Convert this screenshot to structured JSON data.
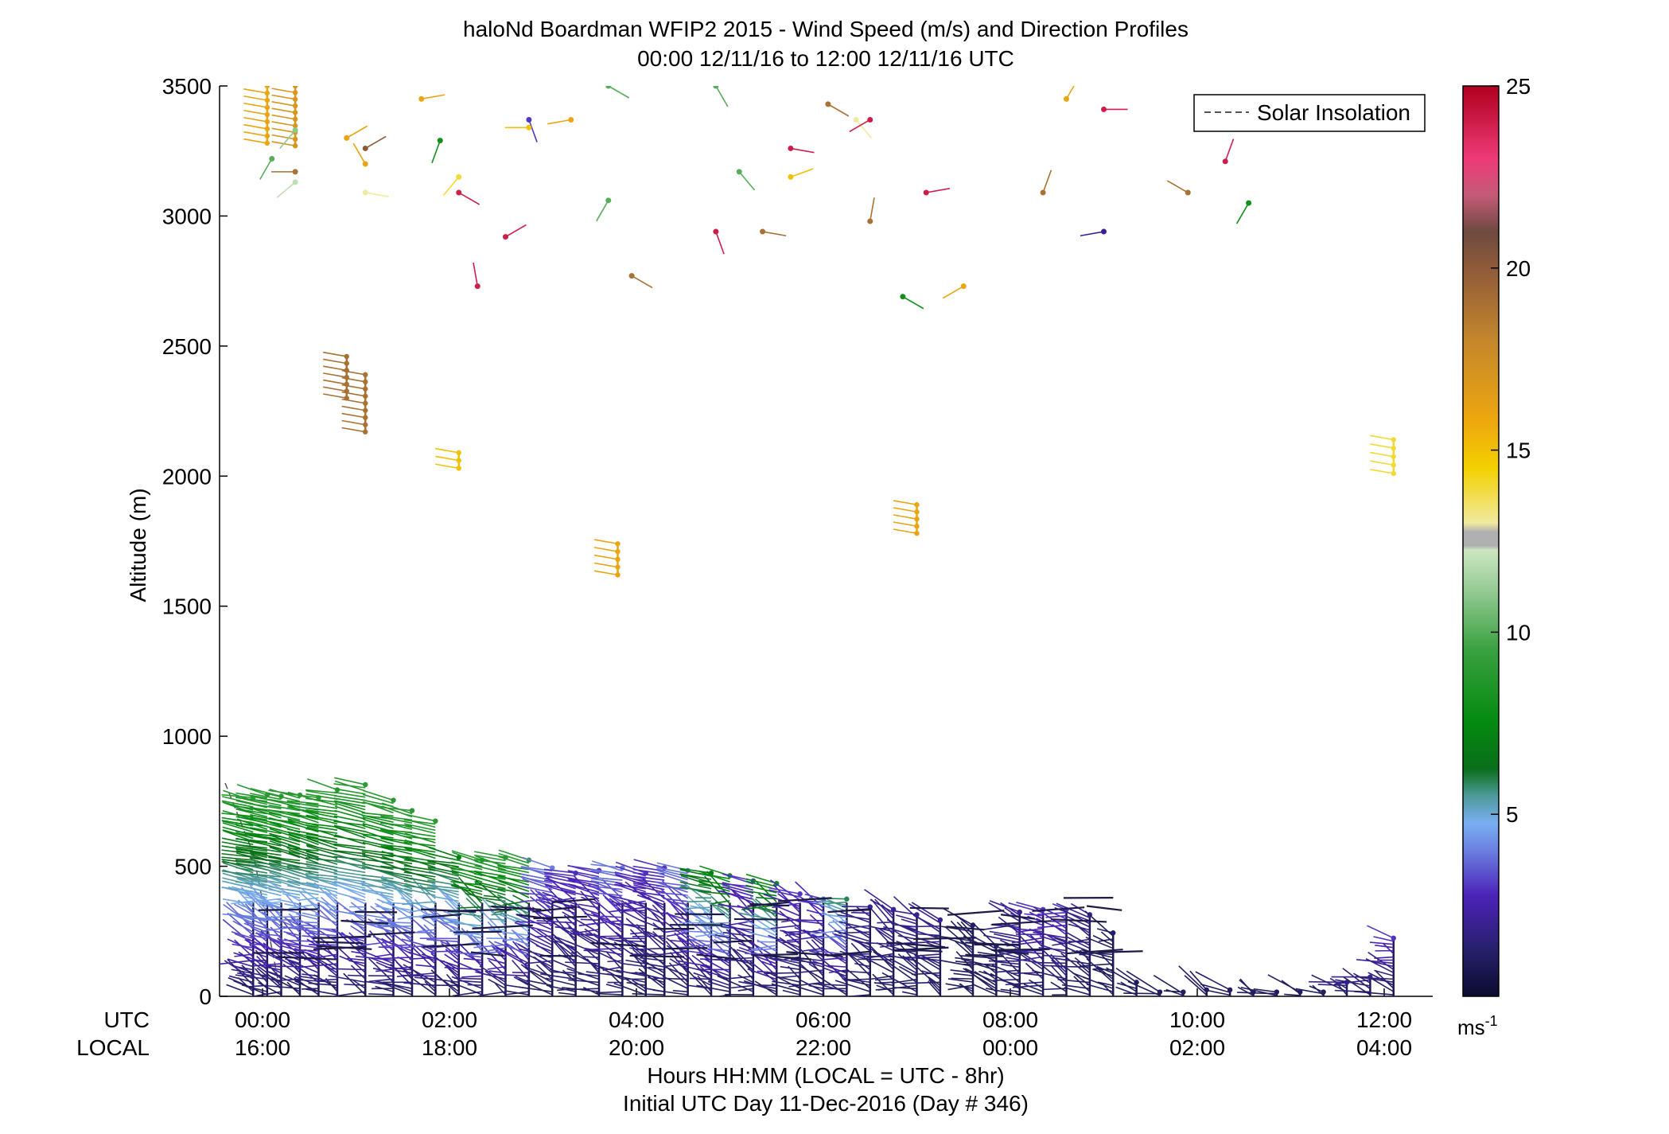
{
  "chart_data": {
    "type": "scatter",
    "title": "haloNd Boardman WFIP2 2015 - Wind Speed (m/s) and Direction Profiles",
    "subtitle": "00:00 12/11/16 to 12:00 12/11/16  UTC",
    "ylabel": "Altitude (m)",
    "xlabel": "Hours HH:MM  (LOCAL = UTC - 8hr)",
    "xlabel2": "Initial UTC Day 11-Dec-2016 (Day # 346)",
    "ylim": [
      0,
      3500
    ],
    "xlim_hours": [
      -0.4,
      12.5
    ],
    "yticks": [
      0,
      500,
      1000,
      1500,
      2000,
      2500,
      3000,
      3500
    ],
    "ytick_labels": [
      "0",
      "500",
      "1000",
      "1500",
      "2000",
      "2500",
      "3000",
      "3500"
    ],
    "xticks_hours": [
      0,
      2,
      4,
      6,
      8,
      10,
      12
    ],
    "xtick_labels_utc": [
      "00:00",
      "02:00",
      "04:00",
      "06:00",
      "08:00",
      "10:00",
      "12:00"
    ],
    "xtick_labels_local": [
      "16:00",
      "18:00",
      "20:00",
      "22:00",
      "00:00",
      "02:00",
      "04:00"
    ],
    "row_label_utc": "UTC",
    "row_label_local": "LOCAL",
    "legend": {
      "entries": [
        "Solar Insolation"
      ],
      "position": "top-right"
    },
    "colorbar": {
      "min": 0,
      "max": 25,
      "ticks": [
        5,
        10,
        15,
        20,
        25
      ],
      "tick_labels": [
        "5",
        "10",
        "15",
        "20",
        "25"
      ],
      "unit": "ms-1"
    },
    "solar_insolation": {
      "x": [
        -0.4,
        -0.1,
        0.2
      ],
      "y": [
        820,
        550,
        0
      ]
    },
    "low_level_profiles": {
      "description": "dense wind barbs per profile time",
      "profiles": [
        {
          "t": -0.1,
          "top": 770,
          "speed_top": 9
        },
        {
          "t": 0.05,
          "top": 780,
          "speed_top": 9
        },
        {
          "t": 0.2,
          "top": 775,
          "speed_top": 9
        },
        {
          "t": 0.4,
          "top": 780,
          "speed_top": 9
        },
        {
          "t": 0.6,
          "top": 770,
          "speed_top": 9
        },
        {
          "t": 0.8,
          "top": 800,
          "speed_top": 9
        },
        {
          "t": 1.1,
          "top": 820,
          "speed_top": 9
        },
        {
          "t": 1.4,
          "top": 760,
          "speed_top": 9
        },
        {
          "t": 1.6,
          "top": 720,
          "speed_top": 9
        },
        {
          "t": 1.85,
          "top": 680,
          "speed_top": 9
        },
        {
          "t": 2.1,
          "top": 540,
          "speed_top": 7
        },
        {
          "t": 2.35,
          "top": 530,
          "speed_top": 9
        },
        {
          "t": 2.6,
          "top": 540,
          "speed_top": 9
        },
        {
          "t": 2.85,
          "top": 530,
          "speed_top": 9
        },
        {
          "t": 3.1,
          "top": 500,
          "speed_top": 4
        },
        {
          "t": 3.35,
          "top": 480,
          "speed_top": 3
        },
        {
          "t": 3.6,
          "top": 490,
          "speed_top": 3
        },
        {
          "t": 3.85,
          "top": 500,
          "speed_top": 4
        },
        {
          "t": 4.1,
          "top": 480,
          "speed_top": 3
        },
        {
          "t": 4.3,
          "top": 500,
          "speed_top": 3
        },
        {
          "t": 4.55,
          "top": 490,
          "speed_top": 4
        },
        {
          "t": 4.8,
          "top": 480,
          "speed_top": 7
        },
        {
          "t": 5.0,
          "top": 470,
          "speed_top": 8
        },
        {
          "t": 5.25,
          "top": 450,
          "speed_top": 3
        },
        {
          "t": 5.5,
          "top": 440,
          "speed_top": 8
        },
        {
          "t": 5.75,
          "top": 400,
          "speed_top": 3
        },
        {
          "t": 6.0,
          "top": 380,
          "speed_top": 3
        },
        {
          "t": 6.25,
          "top": 380,
          "speed_top": 6
        },
        {
          "t": 6.5,
          "top": 350,
          "speed_top": 2
        },
        {
          "t": 6.75,
          "top": 340,
          "speed_top": 2
        },
        {
          "t": 7.0,
          "top": 320,
          "speed_top": 2
        },
        {
          "t": 7.25,
          "top": 300,
          "speed_top": 2
        },
        {
          "t": 7.6,
          "top": 280,
          "speed_top": 1
        },
        {
          "t": 7.85,
          "top": 200,
          "speed_top": 1
        },
        {
          "t": 8.1,
          "top": 330,
          "speed_top": 2
        },
        {
          "t": 8.35,
          "top": 340,
          "speed_top": 3
        },
        {
          "t": 8.6,
          "top": 340,
          "speed_top": 3
        },
        {
          "t": 8.85,
          "top": 320,
          "speed_top": 2
        },
        {
          "t": 9.1,
          "top": 250,
          "speed_top": 1
        },
        {
          "t": 9.35,
          "top": 60,
          "speed_top": 1
        },
        {
          "t": 9.6,
          "top": 20,
          "speed_top": 1
        },
        {
          "t": 9.85,
          "top": 20,
          "speed_top": 1
        },
        {
          "t": 10.1,
          "top": 30,
          "speed_top": 1
        },
        {
          "t": 10.35,
          "top": 30,
          "speed_top": 1
        },
        {
          "t": 10.6,
          "top": 20,
          "speed_top": 1
        },
        {
          "t": 10.85,
          "top": 20,
          "speed_top": 1
        },
        {
          "t": 11.1,
          "top": 20,
          "speed_top": 1
        },
        {
          "t": 11.35,
          "top": 20,
          "speed_top": 1
        },
        {
          "t": 11.6,
          "top": 60,
          "speed_top": 2
        },
        {
          "t": 11.85,
          "top": 80,
          "speed_top": 2
        },
        {
          "t": 12.1,
          "top": 230,
          "speed_top": 3
        }
      ]
    },
    "upper_clusters": [
      {
        "t": 0.05,
        "y_from": 3280,
        "y_to": 3500,
        "speed": 16,
        "dir": -80
      },
      {
        "t": 0.35,
        "y_from": 3270,
        "y_to": 3500,
        "speed": 17,
        "dir": -80
      },
      {
        "t": 0.9,
        "y_from": 2300,
        "y_to": 2460,
        "speed": 19,
        "dir": -80
      },
      {
        "t": 1.1,
        "y_from": 2170,
        "y_to": 2390,
        "speed": 19,
        "dir": -80
      },
      {
        "t": 2.1,
        "y_from": 2030,
        "y_to": 2090,
        "speed": 15,
        "dir": -80
      },
      {
        "t": 3.8,
        "y_from": 1620,
        "y_to": 1740,
        "speed": 16,
        "dir": -80
      },
      {
        "t": 7.0,
        "y_from": 1780,
        "y_to": 1890,
        "speed": 16,
        "dir": -80
      },
      {
        "t": 12.1,
        "y_from": 2010,
        "y_to": 2140,
        "speed": 14,
        "dir": -80
      }
    ],
    "upper_barbs": [
      {
        "t": 0.1,
        "y": 3220,
        "speed": 10,
        "dir": 210
      },
      {
        "t": 0.35,
        "y": 3170,
        "speed": 19,
        "dir": 270
      },
      {
        "t": 0.35,
        "y": 3130,
        "speed": 12,
        "dir": 230
      },
      {
        "t": 0.35,
        "y": 3330,
        "speed": 11,
        "dir": 220
      },
      {
        "t": 0.9,
        "y": 3300,
        "speed": 16,
        "dir": 60
      },
      {
        "t": 1.1,
        "y": 3260,
        "speed": 20,
        "dir": 60
      },
      {
        "t": 1.1,
        "y": 3200,
        "speed": 16,
        "dir": 330
      },
      {
        "t": 1.1,
        "y": 3090,
        "speed": 13,
        "dir": 100
      },
      {
        "t": 1.7,
        "y": 3450,
        "speed": 16,
        "dir": 80
      },
      {
        "t": 1.9,
        "y": 3290,
        "speed": 8,
        "dir": 200
      },
      {
        "t": 2.1,
        "y": 3150,
        "speed": 14,
        "dir": 220
      },
      {
        "t": 2.1,
        "y": 3090,
        "speed": 24,
        "dir": 120
      },
      {
        "t": 2.3,
        "y": 2730,
        "speed": 24,
        "dir": 350
      },
      {
        "t": 2.6,
        "y": 2920,
        "speed": 24,
        "dir": 60
      },
      {
        "t": 2.85,
        "y": 3370,
        "speed": 3,
        "dir": 160
      },
      {
        "t": 2.85,
        "y": 3340,
        "speed": 15,
        "dir": 270
      },
      {
        "t": 3.3,
        "y": 3370,
        "speed": 16,
        "dir": 260
      },
      {
        "t": 3.7,
        "y": 3060,
        "speed": 10,
        "dir": 210
      },
      {
        "t": 3.7,
        "y": 3500,
        "speed": 10,
        "dir": 120
      },
      {
        "t": 3.95,
        "y": 2770,
        "speed": 19,
        "dir": 120
      },
      {
        "t": 4.85,
        "y": 3500,
        "speed": 10,
        "dir": 150
      },
      {
        "t": 4.85,
        "y": 2940,
        "speed": 24,
        "dir": 160
      },
      {
        "t": 5.1,
        "y": 3170,
        "speed": 10,
        "dir": 140
      },
      {
        "t": 5.35,
        "y": 2940,
        "speed": 19,
        "dir": 100
      },
      {
        "t": 5.65,
        "y": 3150,
        "speed": 15,
        "dir": 70
      },
      {
        "t": 5.65,
        "y": 3260,
        "speed": 24,
        "dir": 100
      },
      {
        "t": 6.05,
        "y": 3430,
        "speed": 19,
        "dir": 120
      },
      {
        "t": 6.35,
        "y": 3370,
        "speed": 13,
        "dir": 140
      },
      {
        "t": 6.5,
        "y": 3370,
        "speed": 24,
        "dir": 240
      },
      {
        "t": 6.5,
        "y": 2980,
        "speed": 19,
        "dir": 10
      },
      {
        "t": 6.85,
        "y": 2690,
        "speed": 8,
        "dir": 120
      },
      {
        "t": 7.1,
        "y": 3090,
        "speed": 24,
        "dir": 80
      },
      {
        "t": 7.5,
        "y": 2730,
        "speed": 16,
        "dir": 240
      },
      {
        "t": 8.35,
        "y": 3090,
        "speed": 19,
        "dir": 20
      },
      {
        "t": 8.6,
        "y": 3450,
        "speed": 16,
        "dir": 30
      },
      {
        "t": 9.0,
        "y": 3410,
        "speed": 24,
        "dir": 90
      },
      {
        "t": 9.0,
        "y": 2940,
        "speed": 2,
        "dir": 260
      },
      {
        "t": 9.9,
        "y": 3090,
        "speed": 19,
        "dir": 300
      },
      {
        "t": 10.3,
        "y": 3210,
        "speed": 24,
        "dir": 20
      },
      {
        "t": 10.55,
        "y": 3050,
        "speed": 8,
        "dir": 210
      }
    ]
  }
}
